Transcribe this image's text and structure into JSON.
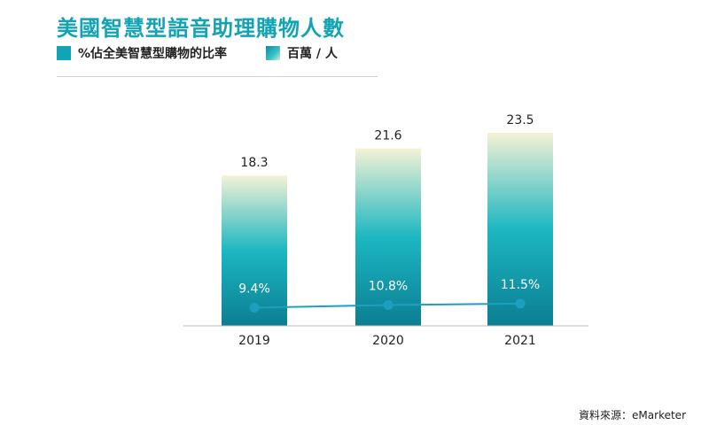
{
  "title": "美國智慧型語音助理購物人數",
  "legend": {
    "line_label": "%佔全美智慧型購物的比率",
    "bar_label": "百萬 / 人"
  },
  "source": "資料來源：eMarketer",
  "colors": {
    "accent": "#12a3b4",
    "bar_bottom": "#0b7e93",
    "bar_mid": "#1cb7c1",
    "bar_top": "#f4f2d6",
    "line": "#1f9fc0"
  },
  "chart_data": {
    "type": "bar",
    "title": "美國智慧型語音助理購物人數",
    "categories": [
      "2019",
      "2020",
      "2021"
    ],
    "series": [
      {
        "name": "百萬 / 人",
        "type": "bar",
        "values": [
          18.3,
          21.6,
          23.5
        ],
        "labels": [
          "18.3",
          "21.6",
          "23.5"
        ]
      },
      {
        "name": "%佔全美智慧型購物的比率",
        "type": "line",
        "values": [
          9.4,
          10.8,
          11.5
        ],
        "labels": [
          "9.4%",
          "10.8%",
          "11.5%"
        ]
      }
    ],
    "ylim": [
      0,
      23.5
    ],
    "line_ylim": [
      0,
      100
    ],
    "grid": false,
    "legend_position": "top-left"
  }
}
